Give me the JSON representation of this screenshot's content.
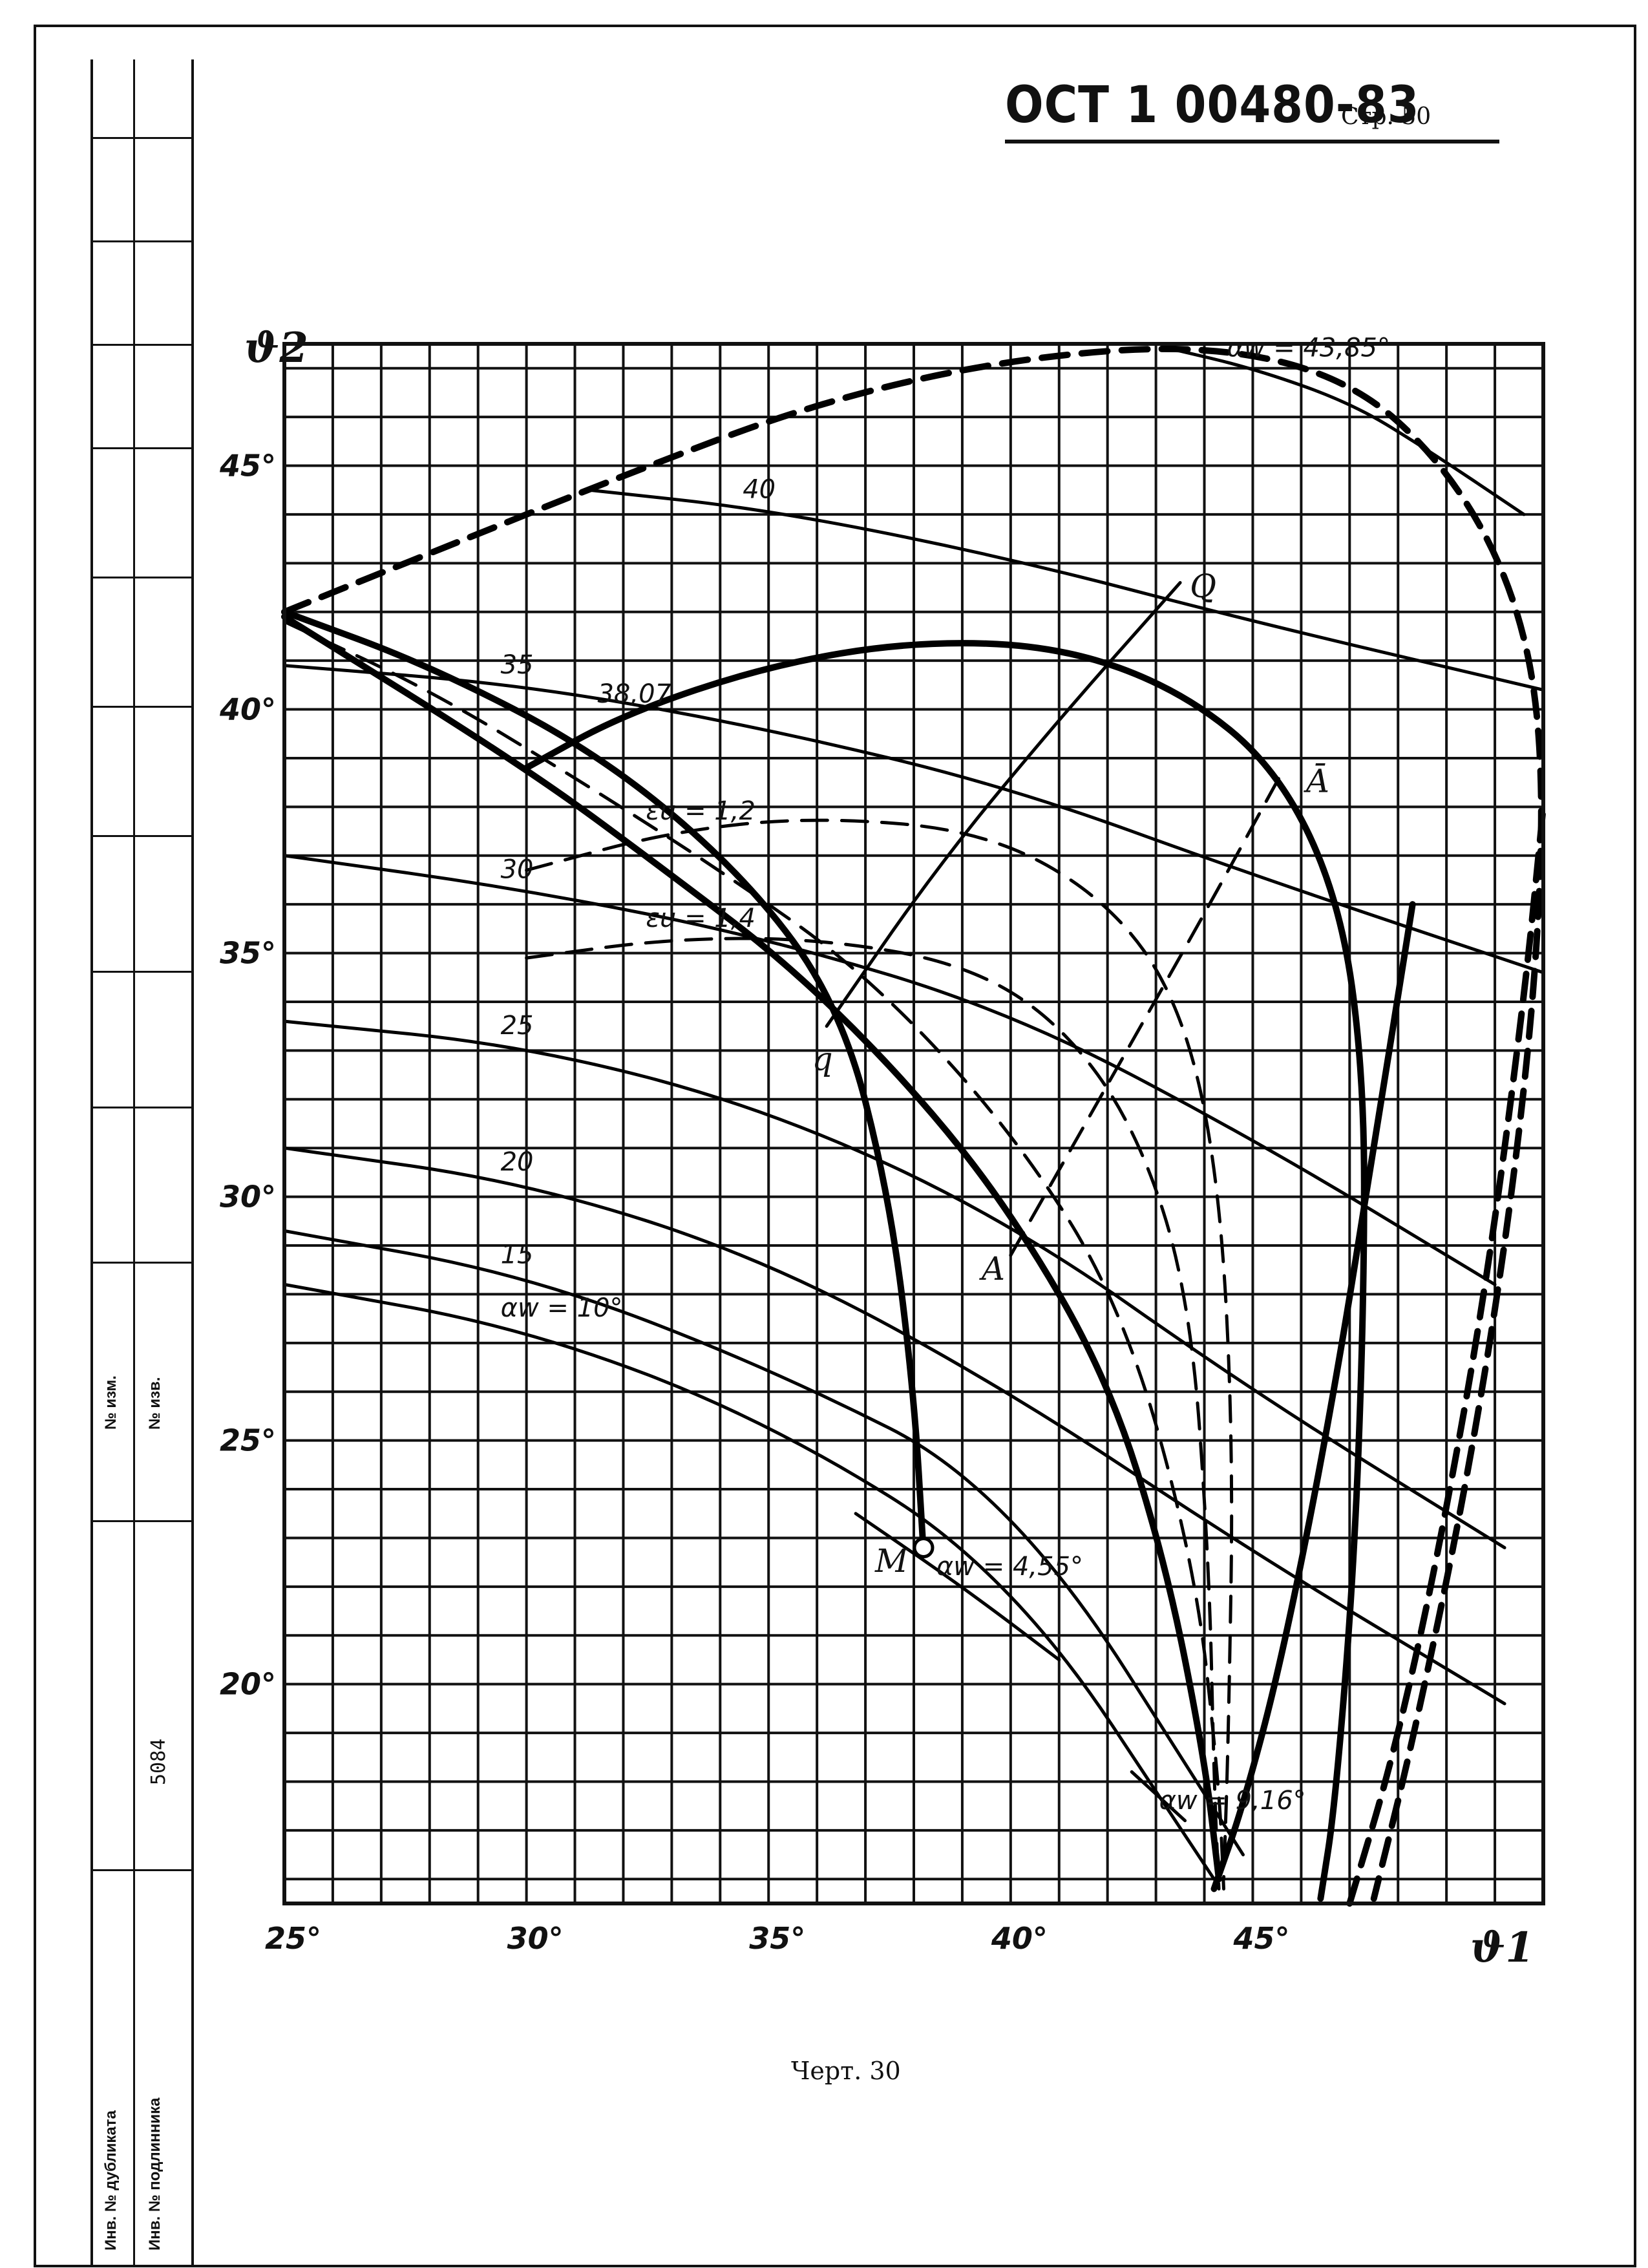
{
  "header": {
    "doc_code": "ОСТ 1 00480-83",
    "page": "Стр. 50"
  },
  "caption": "Черт. 30",
  "margin_strip": {
    "lbl_izm_1": "№ изм.",
    "lbl_izm_2": "№ изв.",
    "lbl_dubl": "Инв. № дубликата",
    "lbl_podl": "Инв. № подлинника",
    "inv_number": "5084"
  },
  "chart_data": {
    "type": "line",
    "title": "",
    "xlabel": "ϑ1",
    "ylabel": "ϑ2",
    "xlim": [
      25,
      51
    ],
    "ylim": [
      15.5,
      47.5
    ],
    "grid": true,
    "x_ticks": [
      "25°",
      "30°",
      "35°",
      "40°",
      "45°"
    ],
    "x_tick_values": [
      25,
      30,
      35,
      40,
      45
    ],
    "y_ticks": [
      "20°",
      "25°",
      "30°",
      "35°",
      "40°",
      "45°"
    ],
    "y_tick_values": [
      20,
      25,
      30,
      35,
      40,
      45
    ],
    "series": [
      {
        "name": "αw = 10°",
        "style": "solid",
        "weight": 1,
        "label": "αw = 10°",
        "points": [
          [
            25,
            28.2
          ],
          [
            30,
            27.3
          ],
          [
            35,
            25.4
          ],
          [
            40,
            22.3
          ],
          [
            44.2,
            16
          ]
        ]
      },
      {
        "name": "15",
        "style": "solid",
        "weight": 1,
        "label": "15",
        "points": [
          [
            25,
            29.3
          ],
          [
            30,
            28.4
          ],
          [
            35,
            26.5
          ],
          [
            40,
            24.0
          ],
          [
            44.8,
            16.5
          ]
        ]
      },
      {
        "name": "20",
        "style": "solid",
        "weight": 1,
        "label": "20",
        "points": [
          [
            25,
            31.0
          ],
          [
            30,
            30.3
          ],
          [
            35,
            28.7
          ],
          [
            40,
            26.0
          ],
          [
            45,
            22.7
          ],
          [
            50.2,
            19.6
          ]
        ]
      },
      {
        "name": "25",
        "style": "solid",
        "weight": 1,
        "label": "25",
        "points": [
          [
            25,
            33.6
          ],
          [
            30,
            33.1
          ],
          [
            35,
            31.8
          ],
          [
            40,
            29.5
          ],
          [
            45,
            26.0
          ],
          [
            50.2,
            22.8
          ]
        ]
      },
      {
        "name": "30",
        "style": "solid",
        "weight": 1,
        "label": "30",
        "points": [
          [
            25,
            37.0
          ],
          [
            30,
            36.3
          ],
          [
            35,
            35.3
          ],
          [
            40,
            33.8
          ],
          [
            45,
            31.2
          ],
          [
            50,
            28.2
          ]
        ]
      },
      {
        "name": "35",
        "style": "solid",
        "weight": 1,
        "label": "35",
        "points": [
          [
            25,
            40.9
          ],
          [
            30,
            40.5
          ],
          [
            35,
            39.6
          ],
          [
            40,
            38.4
          ],
          [
            45,
            36.6
          ],
          [
            51,
            34.6
          ]
        ]
      },
      {
        "name": "40",
        "style": "solid",
        "weight": 1,
        "label": "40",
        "points": [
          [
            31.3,
            44.5
          ],
          [
            35,
            44.1
          ],
          [
            40,
            43.1
          ],
          [
            45,
            41.8
          ],
          [
            51,
            40.4
          ]
        ]
      },
      {
        "name": "αw = 43,85°",
        "style": "solid",
        "weight": 1,
        "label": "αw = 43,85°",
        "points": [
          [
            43.3,
            47.4
          ],
          [
            45,
            47.0
          ],
          [
            47,
            46.3
          ],
          [
            48.5,
            45.4
          ],
          [
            50.6,
            44.0
          ]
        ]
      },
      {
        "name": "38,07",
        "style": "bold",
        "weight": 2,
        "label": "38,07",
        "points": [
          [
            30,
            38.8
          ],
          [
            32,
            39.9
          ],
          [
            35,
            40.9
          ],
          [
            38,
            41.4
          ],
          [
            41,
            41.3
          ],
          [
            43.5,
            40.4
          ],
          [
            45.5,
            38.8
          ],
          [
            46.8,
            36.1
          ],
          [
            47.3,
            32.5
          ],
          [
            47.3,
            28.0
          ],
          [
            47.1,
            22.5
          ],
          [
            46.7,
            17.5
          ],
          [
            46.4,
            15.6
          ]
        ]
      },
      {
        "name": "εu = 1,2",
        "style": "dashed",
        "weight": 1,
        "label": "εu = 1,2",
        "points": [
          [
            30,
            36.7
          ],
          [
            33,
            37.5
          ],
          [
            36,
            37.8
          ],
          [
            39.5,
            37.5
          ],
          [
            42,
            36.1
          ],
          [
            43.5,
            34.0
          ],
          [
            44.3,
            30.5
          ],
          [
            44.6,
            25.0
          ],
          [
            44.5,
            19.0
          ],
          [
            44.4,
            16.0
          ]
        ]
      },
      {
        "name": "εu = 1,4",
        "style": "dashed",
        "weight": 1,
        "label": "εu = 1,4",
        "points": [
          [
            30,
            34.9
          ],
          [
            33,
            35.3
          ],
          [
            36,
            35.3
          ],
          [
            39,
            34.8
          ],
          [
            41,
            33.6
          ],
          [
            42.6,
            31.4
          ],
          [
            43.7,
            28.0
          ],
          [
            44.1,
            22.5
          ],
          [
            44.2,
            18.0
          ],
          [
            44.3,
            15.8
          ]
        ]
      },
      {
        "name": "outer envelope",
        "style": "bold-dashed",
        "weight": 2,
        "label": "",
        "points": [
          [
            25,
            42.0
          ],
          [
            28,
            43.2
          ],
          [
            32,
            44.8
          ],
          [
            36,
            46.3
          ],
          [
            40,
            47.2
          ],
          [
            44,
            47.5
          ],
          [
            47,
            46.8
          ],
          [
            49,
            45.0
          ],
          [
            50.4,
            42.5
          ],
          [
            51,
            39.5
          ],
          [
            50.9,
            35.0
          ],
          [
            50.3,
            29.5
          ],
          [
            49.4,
            24.0
          ],
          [
            48.3,
            18.8
          ],
          [
            47.5,
            15.6
          ]
        ]
      },
      {
        "name": "bold diagonal",
        "style": "bold",
        "weight": 2,
        "label": "",
        "points": [
          [
            25,
            41.9
          ],
          [
            30,
            38.8
          ],
          [
            33,
            36.6
          ],
          [
            35.5,
            34.7
          ],
          [
            38,
            32.2
          ],
          [
            40,
            29.7
          ],
          [
            42,
            26.3
          ],
          [
            43.2,
            22.5
          ],
          [
            44,
            18.5
          ],
          [
            44.3,
            16.0
          ]
        ]
      },
      {
        "name": "dashed diagonal",
        "style": "dashed",
        "weight": 1,
        "label": "",
        "points": [
          [
            25,
            41.8
          ],
          [
            28,
            40.4
          ],
          [
            31,
            38.6
          ],
          [
            34,
            36.7
          ],
          [
            37,
            34.6
          ],
          [
            40,
            31.4
          ],
          [
            42.3,
            27.8
          ],
          [
            43.8,
            22.5
          ],
          [
            44.3,
            18.0
          ],
          [
            44.4,
            15.8
          ]
        ]
      },
      {
        "name": "bold M curve",
        "style": "bold",
        "weight": 2,
        "label": "",
        "points": [
          [
            25,
            42.0
          ],
          [
            28,
            40.9
          ],
          [
            31.5,
            39.1
          ],
          [
            34.5,
            36.6
          ],
          [
            36.5,
            33.9
          ],
          [
            37.5,
            30.0
          ],
          [
            38.0,
            26.0
          ],
          [
            38.2,
            22.7
          ]
        ]
      },
      {
        "name": "αw = 4,55°",
        "style": "solid",
        "weight": 1,
        "label": "αw = 4,55°",
        "points": [
          [
            36.8,
            23.5
          ],
          [
            39,
            22.0
          ],
          [
            41,
            20.5
          ]
        ]
      },
      {
        "name": "αw = 9,16°",
        "style": "solid",
        "weight": 1,
        "label": "αw = 9,16°",
        "points": [
          [
            42.5,
            18.2
          ],
          [
            43.6,
            17.2
          ]
        ]
      },
      {
        "name": "line Qq",
        "style": "solid",
        "weight": 1,
        "label": "",
        "points": [
          [
            36.2,
            33.5
          ],
          [
            38.5,
            36.8
          ],
          [
            41,
            39.8
          ],
          [
            43.5,
            42.6
          ]
        ]
      },
      {
        "name": "line A-A",
        "style": "dashed",
        "weight": 1,
        "label": "",
        "points": [
          [
            40,
            28.8
          ],
          [
            42,
            32.3
          ],
          [
            44,
            35.8
          ],
          [
            45.6,
            38.7
          ]
        ]
      },
      {
        "name": "crossing lower branch",
        "style": "bold",
        "weight": 2,
        "label": "",
        "points": [
          [
            44.2,
            15.8
          ],
          [
            44.8,
            17.5
          ],
          [
            45.6,
            20.5
          ],
          [
            46.6,
            25.5
          ],
          [
            47.5,
            31.0
          ],
          [
            48.3,
            36.0
          ]
        ]
      },
      {
        "name": "right dashed branch",
        "style": "bold-dashed",
        "weight": 2,
        "label": "",
        "points": [
          [
            47.0,
            15.5
          ],
          [
            47.9,
            18.5
          ],
          [
            48.8,
            22.5
          ],
          [
            49.8,
            28.0
          ],
          [
            50.6,
            34.0
          ],
          [
            51,
            38.0
          ]
        ]
      }
    ],
    "annotations": [
      {
        "text": "Q",
        "x": 43.7,
        "y": 42.3
      },
      {
        "text": "q",
        "x": 35.9,
        "y": 32.6
      },
      {
        "text": "A",
        "x": 39.4,
        "y": 28.3
      },
      {
        "text": "Ā",
        "x": 46.1,
        "y": 38.3
      },
      {
        "text": "M",
        "x": 37.2,
        "y": 22.3
      }
    ]
  }
}
